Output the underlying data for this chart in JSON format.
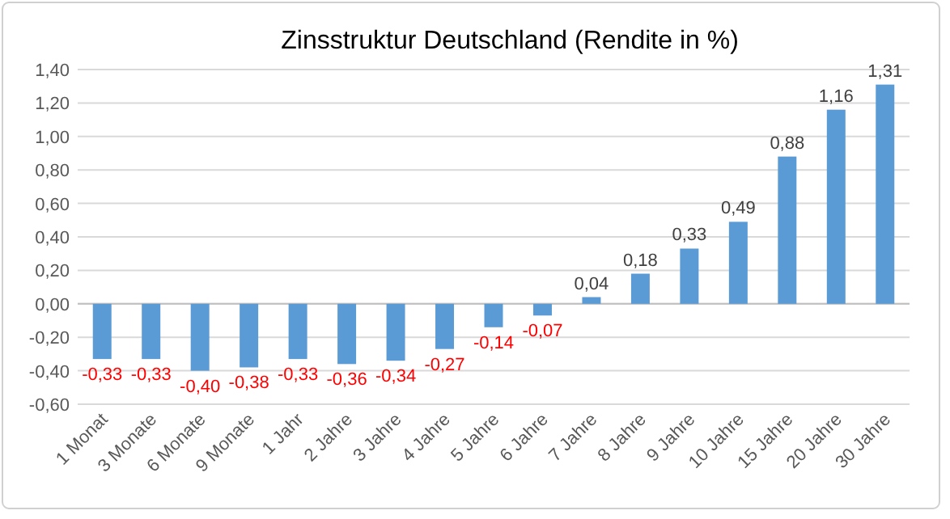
{
  "chart_data": {
    "type": "bar",
    "title": "Zinsstruktur Deutschland (Rendite in %)",
    "categories": [
      "1 Monat",
      "3 Monate",
      "6 Monate",
      "9 Monate",
      "1 Jahr",
      "2 Jahre",
      "3 Jahre",
      "4 Jahre",
      "5 Jahre",
      "6 Jahre",
      "7 Jahre",
      "8 Jahre",
      "9 Jahre",
      "10 Jahre",
      "15 Jahre",
      "20 Jahre",
      "30 Jahre"
    ],
    "values": [
      -0.33,
      -0.33,
      -0.4,
      -0.38,
      -0.33,
      -0.36,
      -0.34,
      -0.27,
      -0.14,
      -0.07,
      0.04,
      0.18,
      0.33,
      0.49,
      0.88,
      1.16,
      1.31
    ],
    "value_labels": [
      "-0,33",
      "-0,33",
      "-0,40",
      "-0,38",
      "-0,33",
      "-0,36",
      "-0,34",
      "-0,27",
      "-0,14",
      "-0,07",
      "0,04",
      "0,18",
      "0,33",
      "0,49",
      "0,88",
      "1,16",
      "1,31"
    ],
    "color": "#5b9bd5",
    "ylim": [
      -0.6,
      1.4
    ],
    "yticks": [
      {
        "value": -0.6,
        "label": "-0,60"
      },
      {
        "value": -0.4,
        "label": "-0,40"
      },
      {
        "value": -0.2,
        "label": "-0,20"
      },
      {
        "value": 0,
        "label": "0,00"
      },
      {
        "value": 0.2,
        "label": "0,20"
      },
      {
        "value": 0.4,
        "label": "0,40"
      },
      {
        "value": 0.6,
        "label": "0,60"
      },
      {
        "value": 0.8,
        "label": "0,80"
      },
      {
        "value": 1.0,
        "label": "1,00"
      },
      {
        "value": 1.2,
        "label": "1,20"
      },
      {
        "value": 1.4,
        "label": "1,40"
      }
    ],
    "grid": true
  }
}
